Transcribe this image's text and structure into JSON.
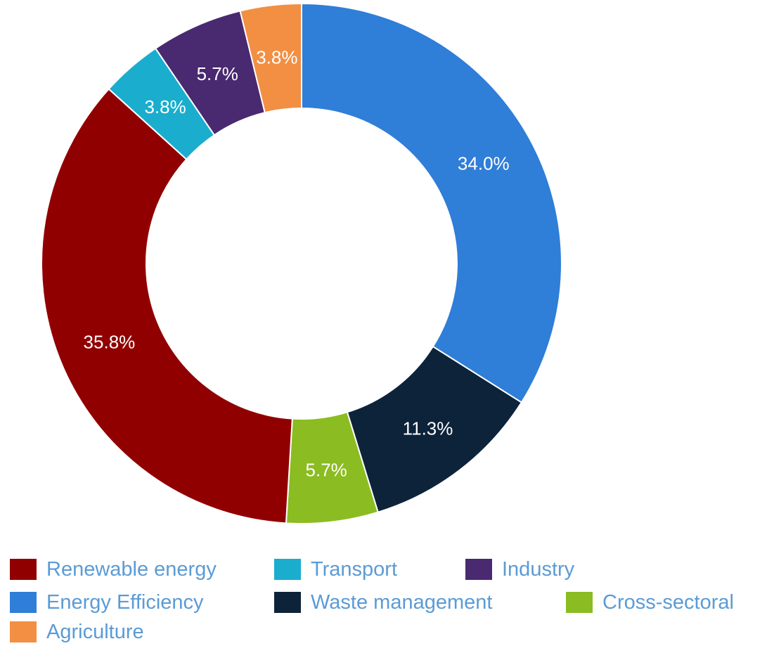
{
  "chart_data": {
    "type": "pie",
    "donut": true,
    "slices": [
      {
        "label": "Energy Efficiency",
        "value": 34.0,
        "display": "34.0%",
        "color": "#2f7ed8"
      },
      {
        "label": "Waste management",
        "value": 11.3,
        "display": "11.3%",
        "color": "#0d233a"
      },
      {
        "label": "Cross-sectoral",
        "value": 5.7,
        "display": "5.7%",
        "color": "#8bbc21"
      },
      {
        "label": "Renewable energy",
        "value": 35.8,
        "display": "35.8%",
        "color": "#910000"
      },
      {
        "label": "Transport",
        "value": 3.8,
        "display": "3.8%",
        "color": "#1aadce"
      },
      {
        "label": "Industry",
        "value": 5.7,
        "display": "5.7%",
        "color": "#492970"
      },
      {
        "label": "Agriculture",
        "value": 3.8,
        "display": "3.8%",
        "color": "#f28f43"
      }
    ],
    "legend_order": [
      "Renewable energy",
      "Transport",
      "Industry",
      "Energy Efficiency",
      "Waste management",
      "Cross-sectoral",
      "Agriculture"
    ],
    "legend_position": "bottom"
  }
}
